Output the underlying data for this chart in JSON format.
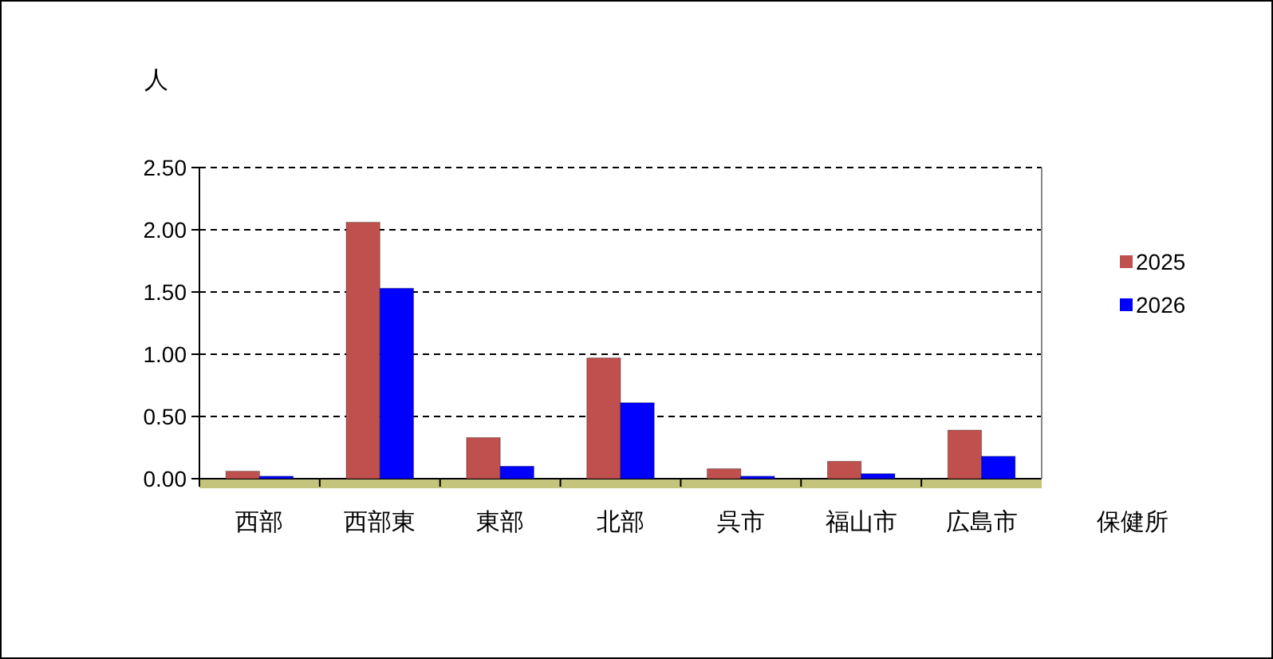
{
  "chart_data": {
    "type": "bar",
    "ylabel": "人",
    "xlabel": "保健所",
    "categories": [
      "西部",
      "西部東",
      "東部",
      "北部",
      "呉市",
      "福山市",
      "広島市"
    ],
    "series": [
      {
        "name": "2025",
        "color": "#c0504d",
        "values": [
          0.06,
          2.06,
          0.33,
          0.97,
          0.08,
          0.14,
          0.39
        ]
      },
      {
        "name": "2026",
        "color": "#0000ff",
        "values": [
          0.02,
          1.53,
          0.1,
          0.61,
          0.02,
          0.04,
          0.18
        ]
      }
    ],
    "ylim": [
      0,
      2.5
    ],
    "yticks": [
      {
        "value": 0,
        "label": "0.00"
      },
      {
        "value": 0.5,
        "label": "0.50"
      },
      {
        "value": 1,
        "label": "1.00"
      },
      {
        "value": 1.5,
        "label": "1.50"
      },
      {
        "value": 2,
        "label": "2.00"
      },
      {
        "value": 2.5,
        "label": "2.50"
      }
    ],
    "grid": "y",
    "legend": "right"
  }
}
